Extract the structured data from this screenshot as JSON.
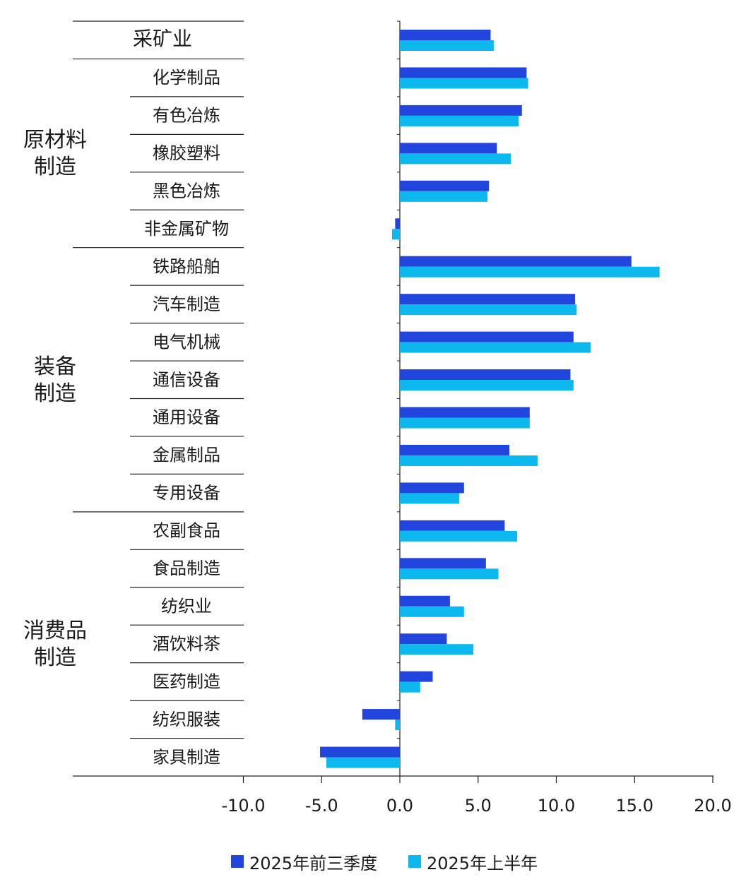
{
  "chart_data": {
    "type": "bar",
    "orientation": "horizontal",
    "categories": [
      "采矿业",
      "化学制品",
      "有色冶炼",
      "橡胶塑料",
      "黑色冶炼",
      "非金属矿物",
      "铁路船舶",
      "汽车制造",
      "电气机械",
      "通信设备",
      "通用设备",
      "金属制品",
      "专用设备",
      "农副食品",
      "食品制造",
      "纺织业",
      "酒饮料茶",
      "医药制造",
      "纺织服装",
      "家具制造"
    ],
    "groups": [
      {
        "label": "",
        "categories": [
          "采矿业"
        ]
      },
      {
        "label": "原材料\n制造",
        "categories": [
          "化学制品",
          "有色冶炼",
          "橡胶塑料",
          "黑色冶炼",
          "非金属矿物"
        ]
      },
      {
        "label": "装备\n制造",
        "categories": [
          "铁路船舶",
          "汽车制造",
          "电气机械",
          "通信设备",
          "通用设备",
          "金属制品",
          "专用设备"
        ]
      },
      {
        "label": "消费品\n制造",
        "categories": [
          "农副食品",
          "食品制造",
          "纺织业",
          "酒饮料茶",
          "医药制造",
          "纺织服装",
          "家具制造"
        ]
      }
    ],
    "series": [
      {
        "name": "2025年前三季度",
        "color": "#2145DD",
        "values": [
          5.8,
          8.1,
          7.8,
          6.2,
          5.7,
          -0.3,
          14.8,
          11.2,
          11.1,
          10.9,
          8.3,
          7.0,
          4.1,
          6.7,
          5.5,
          3.2,
          3.0,
          2.1,
          -2.4,
          -5.1
        ]
      },
      {
        "name": "2025年上半年",
        "color": "#0DB8EF",
        "values": [
          6.0,
          8.2,
          7.6,
          7.1,
          5.6,
          -0.5,
          16.6,
          11.3,
          12.2,
          11.1,
          8.3,
          8.8,
          3.8,
          7.5,
          6.3,
          4.1,
          4.7,
          1.3,
          -0.3,
          -4.7
        ]
      }
    ],
    "xlim": [
      -10,
      20
    ],
    "xticks": [
      "-10.0",
      "-5.0",
      "0.0",
      "5.0",
      "10.0",
      "15.0",
      "20.0"
    ],
    "legend_position": "bottom-center",
    "grid": false,
    "title": "",
    "xlabel": "",
    "ylabel": ""
  },
  "legend": [
    {
      "label": "2025年前三季度",
      "color": "#2145DD"
    },
    {
      "label": "2025年上半年",
      "color": "#0DB8EF"
    }
  ]
}
